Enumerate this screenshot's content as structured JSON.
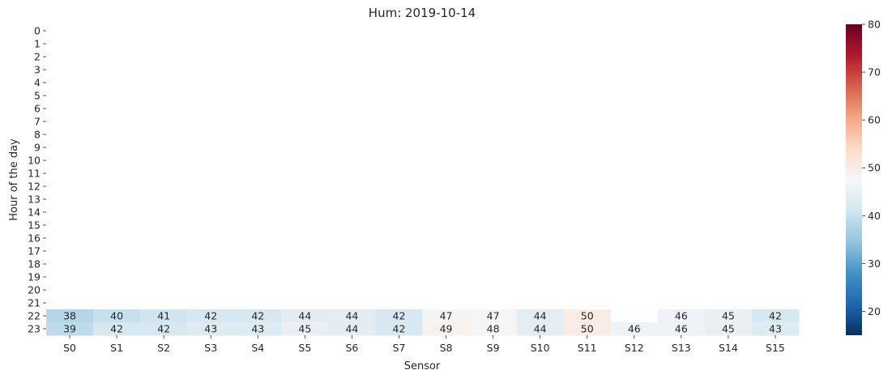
{
  "chart_data": {
    "type": "heatmap",
    "title": "Hum: 2019-10-14",
    "xlabel": "Sensor",
    "ylabel": "Hour of the day",
    "x_categories": [
      "S0",
      "S1",
      "S2",
      "S3",
      "S4",
      "S5",
      "S6",
      "S7",
      "S8",
      "S9",
      "S10",
      "S11",
      "S12",
      "S13",
      "S14",
      "S15"
    ],
    "y_categories": [
      "0",
      "1",
      "2",
      "3",
      "4",
      "5",
      "6",
      "7",
      "8",
      "9",
      "10",
      "11",
      "12",
      "13",
      "14",
      "15",
      "16",
      "17",
      "18",
      "19",
      "20",
      "21",
      "22",
      "23"
    ],
    "values": [
      [
        null,
        null,
        null,
        null,
        null,
        null,
        null,
        null,
        null,
        null,
        null,
        null,
        null,
        null,
        null,
        null
      ],
      [
        null,
        null,
        null,
        null,
        null,
        null,
        null,
        null,
        null,
        null,
        null,
        null,
        null,
        null,
        null,
        null
      ],
      [
        null,
        null,
        null,
        null,
        null,
        null,
        null,
        null,
        null,
        null,
        null,
        null,
        null,
        null,
        null,
        null
      ],
      [
        null,
        null,
        null,
        null,
        null,
        null,
        null,
        null,
        null,
        null,
        null,
        null,
        null,
        null,
        null,
        null
      ],
      [
        null,
        null,
        null,
        null,
        null,
        null,
        null,
        null,
        null,
        null,
        null,
        null,
        null,
        null,
        null,
        null
      ],
      [
        null,
        null,
        null,
        null,
        null,
        null,
        null,
        null,
        null,
        null,
        null,
        null,
        null,
        null,
        null,
        null
      ],
      [
        null,
        null,
        null,
        null,
        null,
        null,
        null,
        null,
        null,
        null,
        null,
        null,
        null,
        null,
        null,
        null
      ],
      [
        null,
        null,
        null,
        null,
        null,
        null,
        null,
        null,
        null,
        null,
        null,
        null,
        null,
        null,
        null,
        null
      ],
      [
        null,
        null,
        null,
        null,
        null,
        null,
        null,
        null,
        null,
        null,
        null,
        null,
        null,
        null,
        null,
        null
      ],
      [
        null,
        null,
        null,
        null,
        null,
        null,
        null,
        null,
        null,
        null,
        null,
        null,
        null,
        null,
        null,
        null
      ],
      [
        null,
        null,
        null,
        null,
        null,
        null,
        null,
        null,
        null,
        null,
        null,
        null,
        null,
        null,
        null,
        null
      ],
      [
        null,
        null,
        null,
        null,
        null,
        null,
        null,
        null,
        null,
        null,
        null,
        null,
        null,
        null,
        null,
        null
      ],
      [
        null,
        null,
        null,
        null,
        null,
        null,
        null,
        null,
        null,
        null,
        null,
        null,
        null,
        null,
        null,
        null
      ],
      [
        null,
        null,
        null,
        null,
        null,
        null,
        null,
        null,
        null,
        null,
        null,
        null,
        null,
        null,
        null,
        null
      ],
      [
        null,
        null,
        null,
        null,
        null,
        null,
        null,
        null,
        null,
        null,
        null,
        null,
        null,
        null,
        null,
        null
      ],
      [
        null,
        null,
        null,
        null,
        null,
        null,
        null,
        null,
        null,
        null,
        null,
        null,
        null,
        null,
        null,
        null
      ],
      [
        null,
        null,
        null,
        null,
        null,
        null,
        null,
        null,
        null,
        null,
        null,
        null,
        null,
        null,
        null,
        null
      ],
      [
        null,
        null,
        null,
        null,
        null,
        null,
        null,
        null,
        null,
        null,
        null,
        null,
        null,
        null,
        null,
        null
      ],
      [
        null,
        null,
        null,
        null,
        null,
        null,
        null,
        null,
        null,
        null,
        null,
        null,
        null,
        null,
        null,
        null
      ],
      [
        null,
        null,
        null,
        null,
        null,
        null,
        null,
        null,
        null,
        null,
        null,
        null,
        null,
        null,
        null,
        null
      ],
      [
        null,
        null,
        null,
        null,
        null,
        null,
        null,
        null,
        null,
        null,
        null,
        null,
        null,
        null,
        null,
        null
      ],
      [
        null,
        null,
        null,
        null,
        null,
        null,
        null,
        null,
        null,
        null,
        null,
        null,
        null,
        null,
        null,
        null
      ],
      [
        38,
        40,
        41,
        42,
        42,
        44,
        44,
        42,
        47,
        47,
        44,
        50,
        null,
        46,
        45,
        42
      ],
      [
        39,
        42,
        42,
        43,
        43,
        45,
        44,
        42,
        49,
        48,
        44,
        50,
        46,
        46,
        45,
        43
      ]
    ],
    "colormap": "RdBu_r",
    "vmin": 15,
    "vmax": 80,
    "colorbar_ticks": [
      20,
      30,
      40,
      50,
      60,
      70,
      80
    ],
    "annotated": true,
    "grid": false
  }
}
